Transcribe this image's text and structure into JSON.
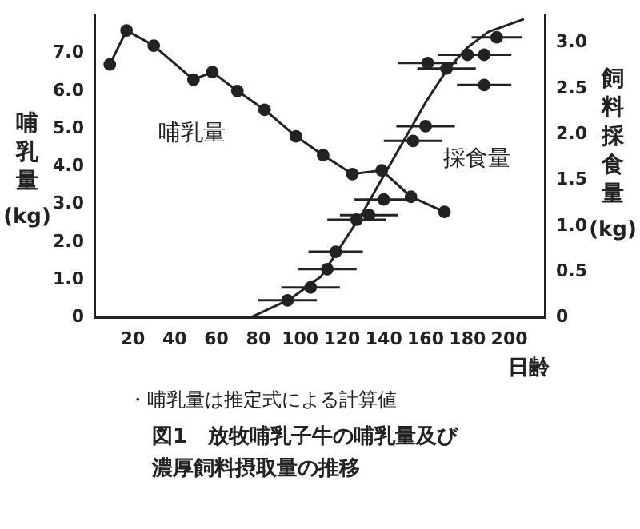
{
  "chart_data": {
    "type": "line",
    "title": "図1　放牧哺乳子牛の哺乳量及び濃厚飼料摂取量の推移",
    "xlabel": "日齢",
    "ylabel": "哺乳量(kg)",
    "y2label": "飼料採食量(kg)",
    "xlim": [
      2,
      217
    ],
    "xticks": [
      20,
      40,
      60,
      80,
      100,
      120,
      140,
      160,
      180,
      200
    ],
    "ylim": [
      0,
      8
    ],
    "yticks": [
      {
        "value": 0,
        "label": "0"
      },
      {
        "value": 1,
        "label": "1.0"
      },
      {
        "value": 2,
        "label": "2.0"
      },
      {
        "value": 3,
        "label": "3.0"
      },
      {
        "value": 4,
        "label": "4.0"
      },
      {
        "value": 5,
        "label": "5.0"
      },
      {
        "value": 6,
        "label": "6.0"
      },
      {
        "value": 7,
        "label": "7.0"
      }
    ],
    "y2lim": [
      0,
      3.3
    ],
    "y2ticks": [
      {
        "value": 0,
        "label": "0"
      },
      {
        "value": 0.5,
        "label": "0.5"
      },
      {
        "value": 1,
        "label": "1.0"
      },
      {
        "value": 1.5,
        "label": "1.5"
      },
      {
        "value": 2,
        "label": "2.0"
      },
      {
        "value": 2.5,
        "label": "2.5"
      },
      {
        "value": 3,
        "label": "3.0"
      }
    ],
    "grid": false,
    "legend": false,
    "series": [
      {
        "color": "#222222",
        "marker": "circle",
        "line_style": "solid",
        "x": [
          9,
          17,
          30,
          49,
          58,
          70,
          83,
          98,
          111,
          125,
          139,
          153,
          169
        ],
        "values": [
          6.7,
          7.6,
          7.2,
          6.3,
          6.5,
          6.0,
          5.5,
          4.8,
          4.3,
          3.8,
          3.9,
          3.2,
          2.8
        ]
      },
      {
        "type": "scatter",
        "axis": "y2",
        "color": "#222222",
        "marker": "circle",
        "x": [
          94,
          105,
          113,
          117,
          127,
          133,
          140,
          154,
          160,
          161,
          170,
          180,
          188,
          188,
          194
        ],
        "values": [
          0.19,
          0.33,
          0.53,
          0.72,
          1.07,
          1.12,
          1.29,
          1.93,
          2.09,
          2.78,
          2.72,
          2.87,
          2.87,
          2.54,
          3.06
        ],
        "xerrors": [
          14,
          14,
          14,
          13,
          14,
          14,
          14,
          14,
          14,
          14,
          14,
          14,
          13,
          13,
          12
        ]
      },
      {
        "type": "line",
        "axis": "y2",
        "color": "#222222",
        "marker": "none",
        "line_style": "solid",
        "x": [
          76,
          95,
          110,
          120,
          130,
          140,
          150,
          160,
          170,
          180,
          190,
          207
        ],
        "values": [
          0,
          0.2,
          0.45,
          0.8,
          1.15,
          1.55,
          1.95,
          2.35,
          2.7,
          2.95,
          3.12,
          3.26
        ]
      }
    ],
    "annotations": [
      "哺乳量",
      "採食量",
      "・哺乳量は推定式による計算値"
    ]
  }
}
